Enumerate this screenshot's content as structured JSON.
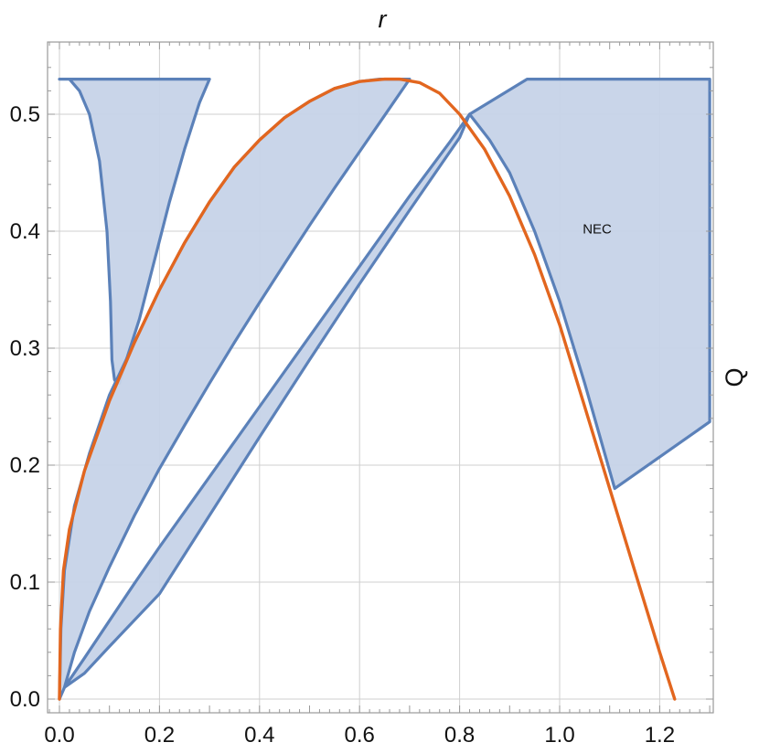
{
  "chart_data": {
    "type": "area",
    "title": "",
    "xlabel": "r",
    "ylabel": "Q",
    "xlim": [
      -0.02,
      1.3
    ],
    "ylim": [
      -0.01,
      0.53
    ],
    "grid": true,
    "colors": {
      "region_fill": "#c6d3e8",
      "region_stroke": "#5b81b9",
      "curve": "#e2661f",
      "grid": "#cfcfcf",
      "frame": "#9a9a9a"
    },
    "x_ticks": [
      {
        "value": 0.0,
        "label": "0.0"
      },
      {
        "value": 0.2,
        "label": "0.2"
      },
      {
        "value": 0.4,
        "label": "0.4"
      },
      {
        "value": 0.6,
        "label": "0.6"
      },
      {
        "value": 0.8,
        "label": "0.8"
      },
      {
        "value": 1.0,
        "label": "1.0"
      },
      {
        "value": 1.2,
        "label": "1.2"
      }
    ],
    "y_ticks": [
      {
        "value": 0.0,
        "label": "0.0"
      },
      {
        "value": 0.1,
        "label": "0.1"
      },
      {
        "value": 0.2,
        "label": "0.2"
      },
      {
        "value": 0.3,
        "label": "0.3"
      },
      {
        "value": 0.4,
        "label": "0.4"
      },
      {
        "value": 0.5,
        "label": "0.5"
      }
    ],
    "annotations": [
      {
        "text": "NEC",
        "x": 1.075,
        "y": 0.398
      }
    ],
    "regions": [
      {
        "points": [
          [
            0.0,
            0.53
          ],
          [
            0.02,
            0.53
          ],
          [
            0.04,
            0.52
          ],
          [
            0.06,
            0.5
          ],
          [
            0.08,
            0.46
          ],
          [
            0.095,
            0.4
          ],
          [
            0.102,
            0.34
          ],
          [
            0.105,
            0.29
          ],
          [
            0.11,
            0.273
          ],
          [
            0.115,
            0.27
          ],
          [
            0.12,
            0.27
          ],
          [
            0.13,
            0.285
          ],
          [
            0.16,
            0.325
          ],
          [
            0.19,
            0.375
          ],
          [
            0.22,
            0.425
          ],
          [
            0.25,
            0.47
          ],
          [
            0.28,
            0.51
          ],
          [
            0.3,
            0.53
          ]
        ]
      },
      {
        "points": [
          [
            0.0,
            0.0
          ],
          [
            0.003,
            0.06
          ],
          [
            0.01,
            0.11
          ],
          [
            0.03,
            0.165
          ],
          [
            0.06,
            0.21
          ],
          [
            0.1,
            0.26
          ],
          [
            0.15,
            0.305
          ],
          [
            0.2,
            0.35
          ],
          [
            0.25,
            0.39
          ],
          [
            0.3,
            0.425
          ],
          [
            0.35,
            0.455
          ],
          [
            0.4,
            0.478
          ],
          [
            0.45,
            0.497
          ],
          [
            0.5,
            0.511
          ],
          [
            0.55,
            0.522
          ],
          [
            0.6,
            0.528
          ],
          [
            0.64,
            0.53
          ],
          [
            0.7,
            0.53
          ],
          [
            0.65,
            0.499
          ],
          [
            0.6,
            0.468
          ],
          [
            0.55,
            0.437
          ],
          [
            0.5,
            0.405
          ],
          [
            0.45,
            0.372
          ],
          [
            0.4,
            0.339
          ],
          [
            0.35,
            0.305
          ],
          [
            0.3,
            0.27
          ],
          [
            0.25,
            0.234
          ],
          [
            0.2,
            0.197
          ],
          [
            0.15,
            0.157
          ],
          [
            0.1,
            0.113
          ],
          [
            0.06,
            0.075
          ],
          [
            0.03,
            0.04
          ],
          [
            0.01,
            0.01
          ]
        ]
      },
      {
        "points": [
          [
            0.01,
            0.01
          ],
          [
            0.05,
            0.035
          ],
          [
            0.1,
            0.067
          ],
          [
            0.15,
            0.099
          ],
          [
            0.2,
            0.13
          ],
          [
            0.3,
            0.19
          ],
          [
            0.4,
            0.25
          ],
          [
            0.5,
            0.31
          ],
          [
            0.6,
            0.37
          ],
          [
            0.7,
            0.43
          ],
          [
            0.78,
            0.476
          ],
          [
            0.82,
            0.5
          ],
          [
            0.8,
            0.48
          ],
          [
            0.7,
            0.418
          ],
          [
            0.6,
            0.355
          ],
          [
            0.5,
            0.29
          ],
          [
            0.4,
            0.224
          ],
          [
            0.3,
            0.157
          ],
          [
            0.2,
            0.09
          ],
          [
            0.1,
            0.045
          ],
          [
            0.05,
            0.022
          ]
        ]
      },
      {
        "points": [
          [
            0.82,
            0.5
          ],
          [
            0.935,
            0.53
          ],
          [
            1.3,
            0.53
          ],
          [
            1.3,
            0.237
          ],
          [
            1.11,
            0.18
          ],
          [
            1.08,
            0.225
          ],
          [
            1.05,
            0.27
          ],
          [
            1.0,
            0.34
          ],
          [
            0.95,
            0.4
          ],
          [
            0.9,
            0.45
          ],
          [
            0.86,
            0.478
          ],
          [
            0.84,
            0.489
          ]
        ]
      }
    ],
    "series": [
      {
        "points": [
          [
            0.0,
            0.0
          ],
          [
            0.002,
            0.06
          ],
          [
            0.008,
            0.11
          ],
          [
            0.02,
            0.145
          ],
          [
            0.05,
            0.195
          ],
          [
            0.1,
            0.255
          ],
          [
            0.15,
            0.305
          ],
          [
            0.2,
            0.35
          ],
          [
            0.25,
            0.39
          ],
          [
            0.3,
            0.425
          ],
          [
            0.35,
            0.455
          ],
          [
            0.4,
            0.478
          ],
          [
            0.45,
            0.497
          ],
          [
            0.5,
            0.511
          ],
          [
            0.55,
            0.522
          ],
          [
            0.6,
            0.528
          ],
          [
            0.65,
            0.53
          ],
          [
            0.68,
            0.53
          ],
          [
            0.72,
            0.527
          ],
          [
            0.76,
            0.518
          ],
          [
            0.8,
            0.5
          ],
          [
            0.85,
            0.47
          ],
          [
            0.9,
            0.43
          ],
          [
            0.95,
            0.38
          ],
          [
            1.0,
            0.32
          ],
          [
            1.05,
            0.25
          ],
          [
            1.1,
            0.18
          ],
          [
            1.15,
            0.11
          ],
          [
            1.2,
            0.04
          ],
          [
            1.23,
            0.0
          ]
        ]
      }
    ]
  }
}
